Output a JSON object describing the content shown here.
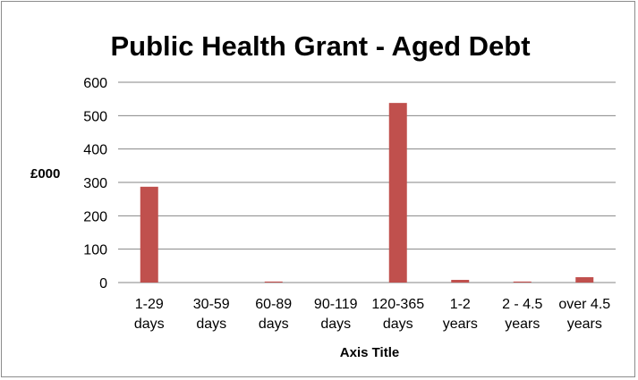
{
  "chart_data": {
    "type": "bar",
    "title": "Public Health Grant - Aged Debt",
    "ylabel": "£000",
    "xlabel": "Axis Title",
    "ylim": [
      0,
      600
    ],
    "yticks": [
      0,
      100,
      200,
      300,
      400,
      500,
      600
    ],
    "grid": true,
    "legend": "none",
    "bar_color": "#C0504D",
    "categories": [
      [
        "1-29",
        "days"
      ],
      [
        "30-59",
        "days"
      ],
      [
        "60-89",
        "days"
      ],
      [
        "90-119",
        "days"
      ],
      [
        "120-365",
        "days"
      ],
      [
        "1-2",
        "years"
      ],
      [
        "2 - 4.5",
        "years"
      ],
      [
        "over 4.5",
        "years"
      ]
    ],
    "values": [
      287,
      0,
      3,
      0,
      538,
      8,
      3,
      16
    ]
  }
}
